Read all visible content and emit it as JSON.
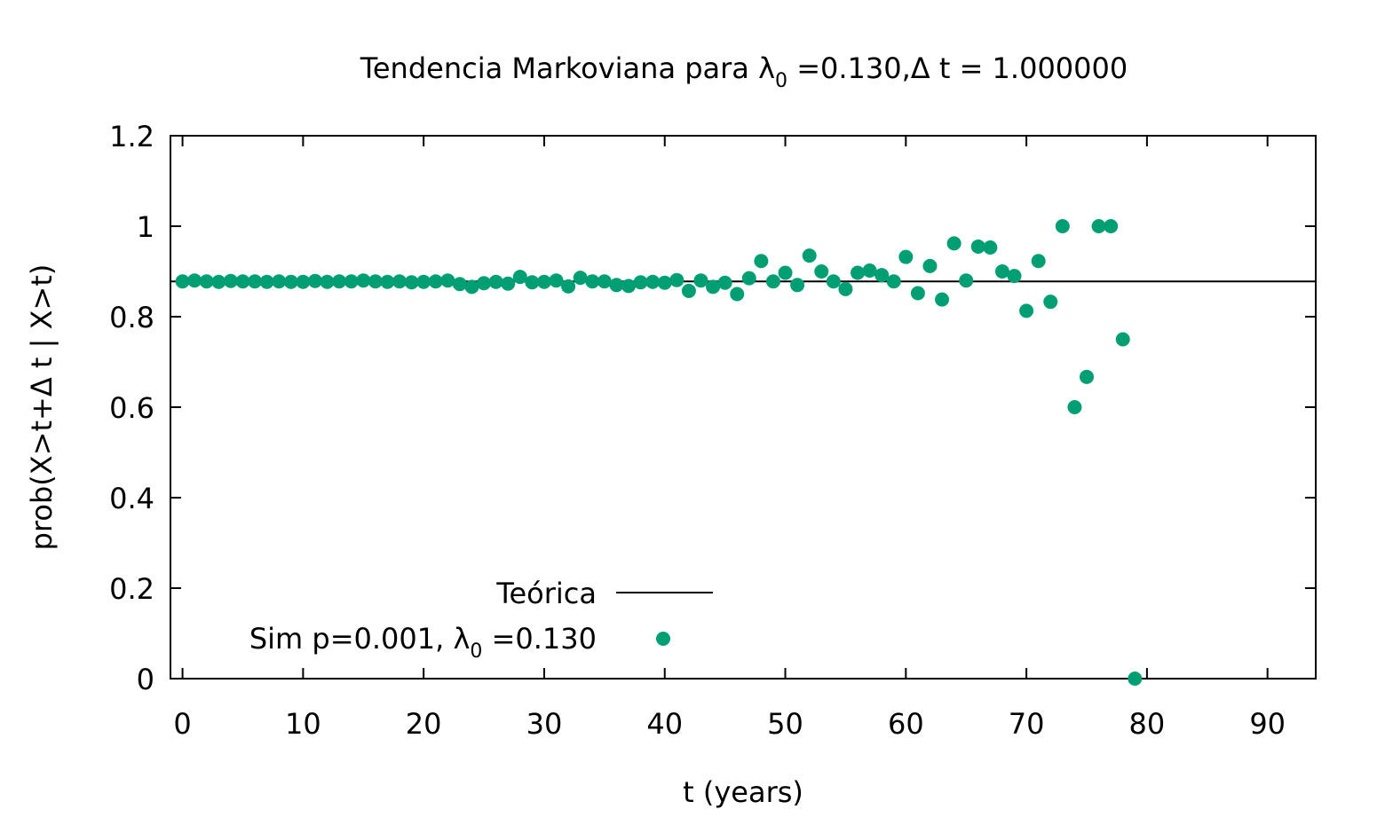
{
  "chart_data": {
    "type": "scatter",
    "title": "Tendencia Markoviana para λ",
    "title_sub": "0",
    "title_rest": " =0.130,Δ t = 1.000000",
    "xlabel": "t (years)",
    "ylabel": "prob(X>t+Δ t | X>t)",
    "xlim": [
      -1,
      94
    ],
    "ylim": [
      0,
      1.2
    ],
    "xticks": [
      "0",
      "10",
      "20",
      "30",
      "40",
      "50",
      "60",
      "70",
      "80",
      "90"
    ],
    "yticks": [
      "0",
      "0.2",
      "0.4",
      "0.6",
      "0.8",
      "1",
      "1.2"
    ],
    "grid": false,
    "legend_position": "bottom-left",
    "series": [
      {
        "name": "Teórica",
        "kind": "line",
        "color": "#000000",
        "y_constant": 0.878
      },
      {
        "name": "Sim p=0.001, λ",
        "name_sub": "0",
        "name_rest": " =0.130",
        "kind": "points",
        "color": "#009e73",
        "x": [
          0,
          1,
          2,
          3,
          4,
          5,
          6,
          7,
          8,
          9,
          10,
          11,
          12,
          13,
          14,
          15,
          16,
          17,
          18,
          19,
          20,
          21,
          22,
          23,
          24,
          25,
          26,
          27,
          28,
          29,
          30,
          31,
          32,
          33,
          34,
          35,
          36,
          37,
          38,
          39,
          40,
          41,
          42,
          43,
          44,
          45,
          46,
          47,
          48,
          49,
          50,
          51,
          52,
          53,
          54,
          55,
          56,
          57,
          58,
          59,
          60,
          61,
          62,
          63,
          64,
          65,
          66,
          67,
          68,
          69,
          70,
          71,
          72,
          73,
          74,
          75,
          76,
          77,
          78,
          79
        ],
        "y": [
          0.878,
          0.88,
          0.878,
          0.877,
          0.879,
          0.878,
          0.878,
          0.877,
          0.878,
          0.877,
          0.877,
          0.879,
          0.877,
          0.878,
          0.878,
          0.88,
          0.878,
          0.877,
          0.878,
          0.876,
          0.877,
          0.878,
          0.88,
          0.872,
          0.866,
          0.874,
          0.877,
          0.873,
          0.888,
          0.876,
          0.877,
          0.88,
          0.867,
          0.886,
          0.878,
          0.878,
          0.87,
          0.868,
          0.876,
          0.877,
          0.875,
          0.881,
          0.857,
          0.88,
          0.866,
          0.875,
          0.85,
          0.885,
          0.923,
          0.878,
          0.897,
          0.87,
          0.935,
          0.9,
          0.878,
          0.861,
          0.897,
          0.902,
          0.892,
          0.878,
          0.932,
          0.852,
          0.912,
          0.838,
          0.962,
          0.88,
          0.955,
          0.953,
          0.9,
          0.89,
          0.813,
          0.923,
          0.833,
          1.0,
          0.6,
          0.667,
          1.0,
          1.0,
          0.75,
          0.0
        ]
      }
    ]
  }
}
